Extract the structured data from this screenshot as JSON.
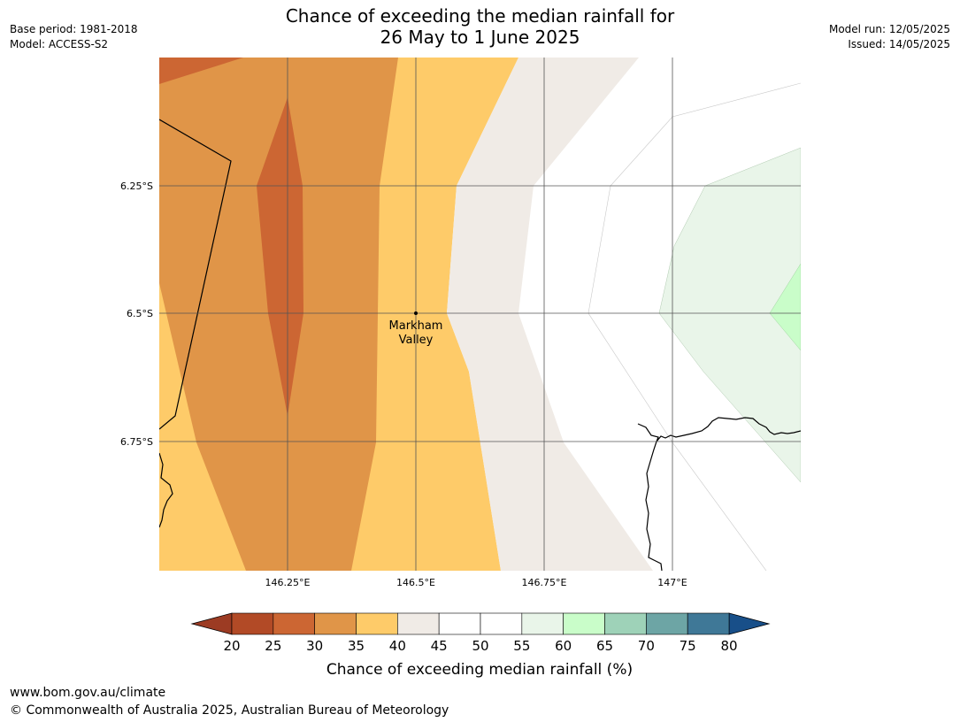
{
  "header": {
    "base_period": "Base period: 1981-2018",
    "model": "Model: ACCESS-S2",
    "title_line1": "Chance of exceeding the median rainfall for",
    "title_line2": "26 May to 1 June 2025",
    "model_run": "Model run: 12/05/2025",
    "issued": "Issued: 14/05/2025"
  },
  "map": {
    "lat_labels": [
      "6.25°S",
      "6.5°S",
      "6.75°S"
    ],
    "lon_labels": [
      "146.25°E",
      "146.5°E",
      "146.75°E",
      "147°E"
    ],
    "place": {
      "name_line1": "Markham",
      "name_line2": "Valley",
      "lat": "6.5°S",
      "lon": "146.5°E"
    }
  },
  "colorbar": {
    "label": "Chance of exceeding median rainfall (%)",
    "ticks": [
      "20",
      "25",
      "30",
      "35",
      "40",
      "45",
      "50",
      "55",
      "60",
      "65",
      "70",
      "75",
      "80"
    ],
    "under_color": "#9c3b23",
    "over_color": "#184f89",
    "colors": [
      "#b24a26",
      "#cc6633",
      "#e09548",
      "#fecb69",
      "#f0ebe6",
      "#ffffff",
      "#ffffff",
      "#e9f5e9",
      "#c9fdc9",
      "#9ed2b8",
      "#6da5a5",
      "#3f7897"
    ]
  },
  "footer": {
    "url": "www.bom.gov.au/climate",
    "copyright": "© Commonwealth of Australia 2025, Australian Bureau of Meteorology"
  }
}
